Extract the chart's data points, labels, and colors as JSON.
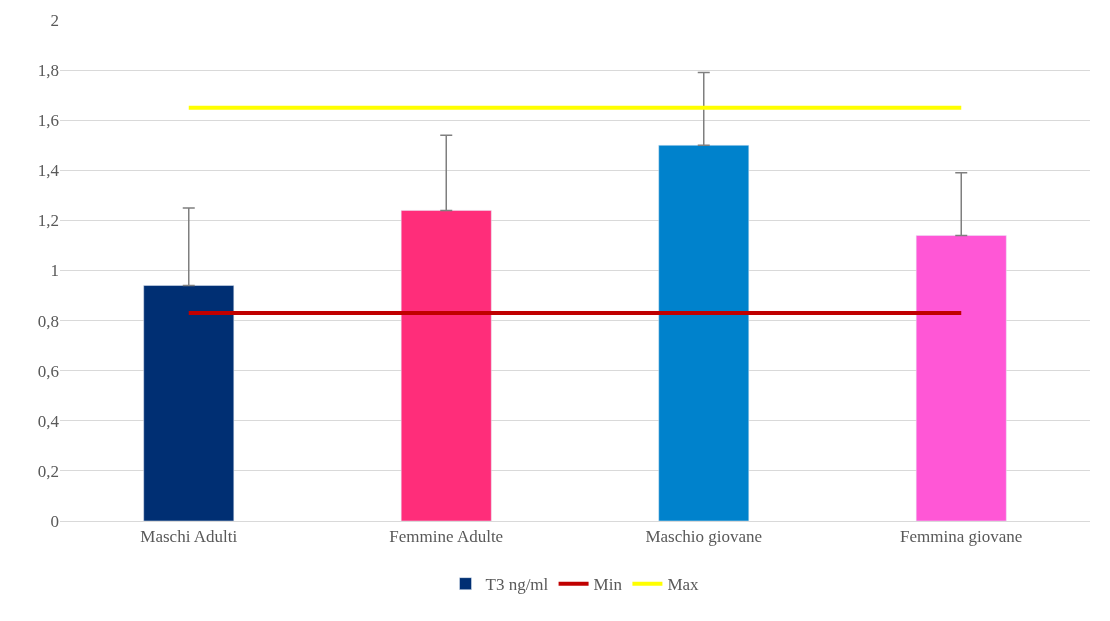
{
  "chart_data": {
    "type": "bar",
    "categories": [
      "Maschi Adulti",
      "Femmine Adulte",
      "Maschio giovane",
      "Femmina giovane"
    ],
    "series": [
      {
        "name": "T3 ng/ml",
        "colors": [
          "#002f73",
          "#ff2d7a",
          "#0082cc",
          "#ff57d6"
        ],
        "values": [
          0.94,
          1.24,
          1.5,
          1.14
        ],
        "errors": [
          [
            0.94,
            1.25
          ],
          [
            1.24,
            1.54
          ],
          [
            1.5,
            1.79
          ],
          [
            1.14,
            1.39
          ]
        ]
      },
      {
        "name": "Min",
        "type": "line",
        "color": "#c00000",
        "values": [
          0.83,
          0.83,
          0.83,
          0.83
        ]
      },
      {
        "name": "Max",
        "type": "line",
        "color": "#ffff00",
        "values": [
          1.65,
          1.65,
          1.65,
          1.65
        ]
      }
    ],
    "ylim": [
      0,
      2
    ],
    "yticks": [
      0,
      {
        "value": 0.2,
        "label": "0,2"
      },
      {
        "value": 0.4,
        "label": "0,4"
      },
      {
        "value": 0.6,
        "label": "0,6"
      },
      {
        "value": 0.8,
        "label": "0,8"
      },
      1,
      {
        "value": 1.2,
        "label": "1,2"
      },
      {
        "value": 1.4,
        "label": "1,4"
      },
      {
        "value": 1.6,
        "label": "1,6"
      },
      {
        "value": 1.8,
        "label": "1,8"
      },
      2
    ],
    "grid": "y",
    "legend": "bottom",
    "marker": "none",
    "line_style": "solid"
  }
}
